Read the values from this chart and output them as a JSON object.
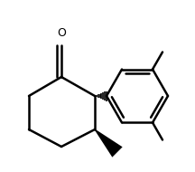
{
  "bg_color": "#ffffff",
  "line_color": "#000000",
  "line_width": 1.8,
  "figsize": [
    2.16,
    1.9
  ],
  "dpi": 100,
  "xlim": [
    0,
    216
  ],
  "ylim": [
    0,
    190
  ]
}
